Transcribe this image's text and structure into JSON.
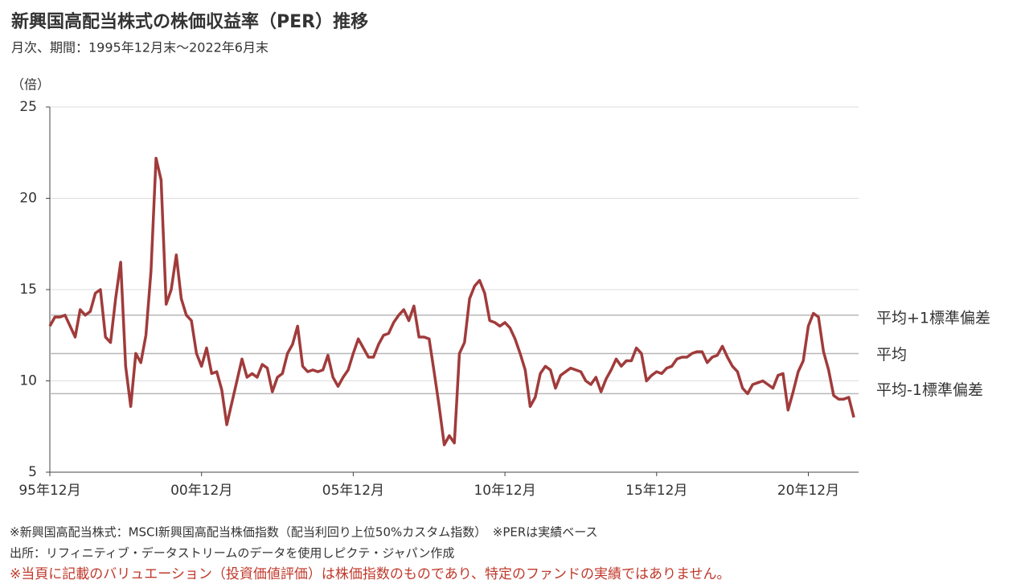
{
  "chart_data": {
    "type": "line",
    "title": "新興国高配当株式の株価収益率（PER）推移",
    "subtitle": "月次、期間：1995年12月末～2022年6月末",
    "y_axis_label": "（倍）",
    "notes": [
      "※新興国高配当株式：MSCI新興国高配当株価指数（配当利回り上位50%カスタム指数）　※PERは実績ベース",
      "出所：リフィニティブ・データストリームのデータを使用しピクテ・ジャパン作成"
    ],
    "disclaimer": "※当頁に記載のバリュエーション（投資価値評価）は株価指数のものであり、特定のファンドの実績ではありません。",
    "disclaimer_color": "#c0392b",
    "categories": [
      "95年12月",
      null,
      null,
      null,
      null,
      null,
      null,
      null,
      null,
      null,
      null,
      null,
      null,
      null,
      null,
      null,
      null,
      null,
      null,
      null,
      null,
      null,
      null,
      null,
      null,
      null,
      null,
      null,
      null,
      null,
      "00年12月",
      null,
      null,
      null,
      null,
      null,
      null,
      null,
      null,
      null,
      null,
      null,
      null,
      null,
      null,
      null,
      null,
      null,
      null,
      null,
      null,
      null,
      null,
      null,
      null,
      null,
      null,
      null,
      null,
      null,
      "05年12月",
      null,
      null,
      null,
      null,
      null,
      null,
      null,
      null,
      null,
      null,
      null,
      null,
      null,
      null,
      null,
      null,
      null,
      null,
      null,
      null,
      null,
      null,
      null,
      null,
      null,
      null,
      null,
      null,
      null,
      "10年12月",
      null,
      null,
      null,
      null,
      null,
      null,
      null,
      null,
      null,
      null,
      null,
      null,
      null,
      null,
      null,
      null,
      null,
      null,
      null,
      null,
      null,
      null,
      null,
      null,
      null,
      null,
      null,
      null,
      null,
      "15年12月",
      null,
      null,
      null,
      null,
      null,
      null,
      null,
      null,
      null,
      null,
      null,
      null,
      null,
      null,
      null,
      null,
      null,
      null,
      null,
      null,
      null,
      null,
      null,
      null,
      null,
      null,
      null,
      null,
      null,
      "20年12月",
      null,
      null,
      null,
      null,
      null,
      null,
      null,
      null,
      null
    ],
    "values": [
      13.0,
      13.5,
      13.5,
      13.6,
      13.0,
      12.4,
      13.9,
      13.6,
      13.8,
      14.8,
      15.0,
      12.4,
      12.1,
      14.5,
      16.5,
      10.8,
      8.6,
      11.5,
      11.0,
      12.5,
      16.0,
      22.2,
      21.0,
      14.2,
      15.0,
      16.9,
      14.5,
      13.6,
      13.3,
      11.5,
      10.8,
      11.8,
      10.4,
      10.5,
      9.5,
      7.6,
      8.8,
      10.0,
      11.2,
      10.2,
      10.4,
      10.2,
      10.9,
      10.7,
      9.4,
      10.2,
      10.4,
      11.5,
      12.0,
      13.0,
      10.8,
      10.5,
      10.6,
      10.5,
      10.6,
      11.4,
      10.2,
      9.7,
      10.2,
      10.6,
      11.5,
      12.3,
      11.8,
      11.3,
      11.3,
      12.0,
      12.5,
      12.6,
      13.2,
      13.6,
      13.9,
      13.3,
      14.1,
      12.4,
      12.4,
      12.3,
      10.5,
      8.6,
      6.5,
      7.0,
      6.6,
      11.5,
      12.1,
      14.5,
      15.2,
      15.5,
      14.8,
      13.3,
      13.2,
      13.0,
      13.2,
      12.9,
      12.3,
      11.5,
      10.6,
      8.6,
      9.1,
      10.4,
      10.8,
      10.6,
      9.6,
      10.3,
      10.5,
      10.7,
      10.6,
      10.5,
      10.0,
      9.8,
      10.2,
      9.4,
      10.1,
      10.6,
      11.2,
      10.8,
      11.1,
      11.1,
      11.8,
      11.5,
      10.0,
      10.3,
      10.5,
      10.4,
      10.7,
      10.8,
      11.2,
      11.3,
      11.3,
      11.5,
      11.6,
      11.6,
      11.0,
      11.3,
      11.4,
      11.9,
      11.3,
      10.8,
      10.5,
      9.6,
      9.3,
      9.8,
      9.9,
      10.0,
      9.8,
      9.6,
      10.3,
      10.4,
      8.4,
      9.4,
      10.5,
      11.1,
      13.0,
      13.7,
      13.5,
      11.6,
      10.6,
      9.2,
      9.0,
      9.0,
      9.1,
      8.0
    ],
    "color": "#a13b3b",
    "ylim": [
      5,
      25
    ],
    "yticks": [
      5,
      10,
      15,
      20,
      25
    ],
    "grid": true,
    "reference_lines": [
      {
        "value": 13.6,
        "label": "平均+1標準偏差"
      },
      {
        "value": 11.5,
        "label": "平均"
      },
      {
        "value": 9.3,
        "label": "平均-1標準偏差"
      }
    ],
    "reference_color": "#b8b8b8"
  }
}
